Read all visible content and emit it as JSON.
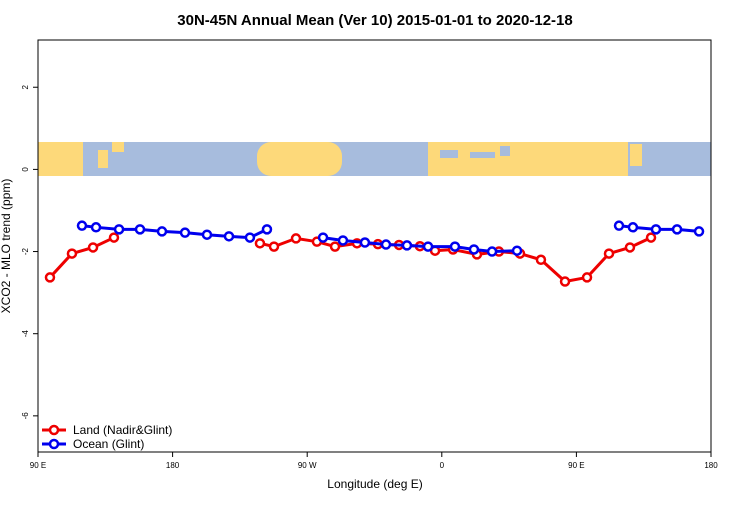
{
  "chart_data": {
    "type": "line",
    "title": "30N-45N Annual Mean (Ver 10)   2015-01-01 to 2020-12-18",
    "x_label": "Longitude (deg E)",
    "y_label": "XCO2 - MLO trend (ppm)",
    "xlim": [
      90,
      540
    ],
    "ylim": [
      -6.88,
      3.15
    ],
    "xticks": [
      {
        "value": 90,
        "label": "90 E"
      },
      180,
      {
        "value": 270,
        "label": "90 W"
      },
      {
        "value": 360,
        "label": "0"
      },
      {
        "value": 450,
        "label": "90 E"
      },
      {
        "value": 540,
        "label": "180"
      }
    ],
    "yticks": [
      2,
      0,
      -2,
      -4,
      -6
    ],
    "legend": "bottom-left",
    "series": [
      {
        "name": "Land (Nadir&Glint)",
        "color": "#ee0000",
        "x": [
          98,
          112.7,
          126.8,
          140.8,
          null,
          238.4,
          247.8,
          262.5,
          276.5,
          288.6,
          303.3,
          317.3,
          331.4,
          345.4,
          355.5,
          367.5,
          383.5,
          398.2,
          412.3,
          426.3,
          442.4,
          457.1,
          471.8,
          485.8,
          499.9
        ],
        "values": [
          -2.63,
          -2.05,
          -1.9,
          -1.66,
          null,
          -1.8,
          -1.88,
          -1.68,
          -1.76,
          -1.88,
          -1.8,
          -1.82,
          -1.84,
          -1.87,
          -1.98,
          -1.95,
          -2.07,
          -2.0,
          -2.05,
          -2.2,
          -2.73,
          -2.63,
          -2.05,
          -1.9,
          -1.66
        ]
      },
      {
        "name": "Ocean (Glint)",
        "color": "#0000ee",
        "x": [
          119.4,
          128.8,
          144.2,
          158.2,
          172.9,
          188.3,
          203.0,
          217.7,
          231.7,
          243.1,
          null,
          280.6,
          293.9,
          308.6,
          322.7,
          336.7,
          350.8,
          368.8,
          381.5,
          393.6,
          410.3,
          null,
          478.5,
          487.8,
          503.2,
          517.3,
          532.0
        ],
        "values": [
          -1.37,
          -1.41,
          -1.46,
          -1.46,
          -1.51,
          -1.54,
          -1.59,
          -1.63,
          -1.66,
          -1.46,
          null,
          -1.66,
          -1.73,
          -1.78,
          -1.83,
          -1.85,
          -1.88,
          -1.88,
          -1.95,
          -2.0,
          -1.98,
          null,
          -1.37,
          -1.41,
          -1.46,
          -1.46,
          -1.51
        ]
      }
    ]
  }
}
